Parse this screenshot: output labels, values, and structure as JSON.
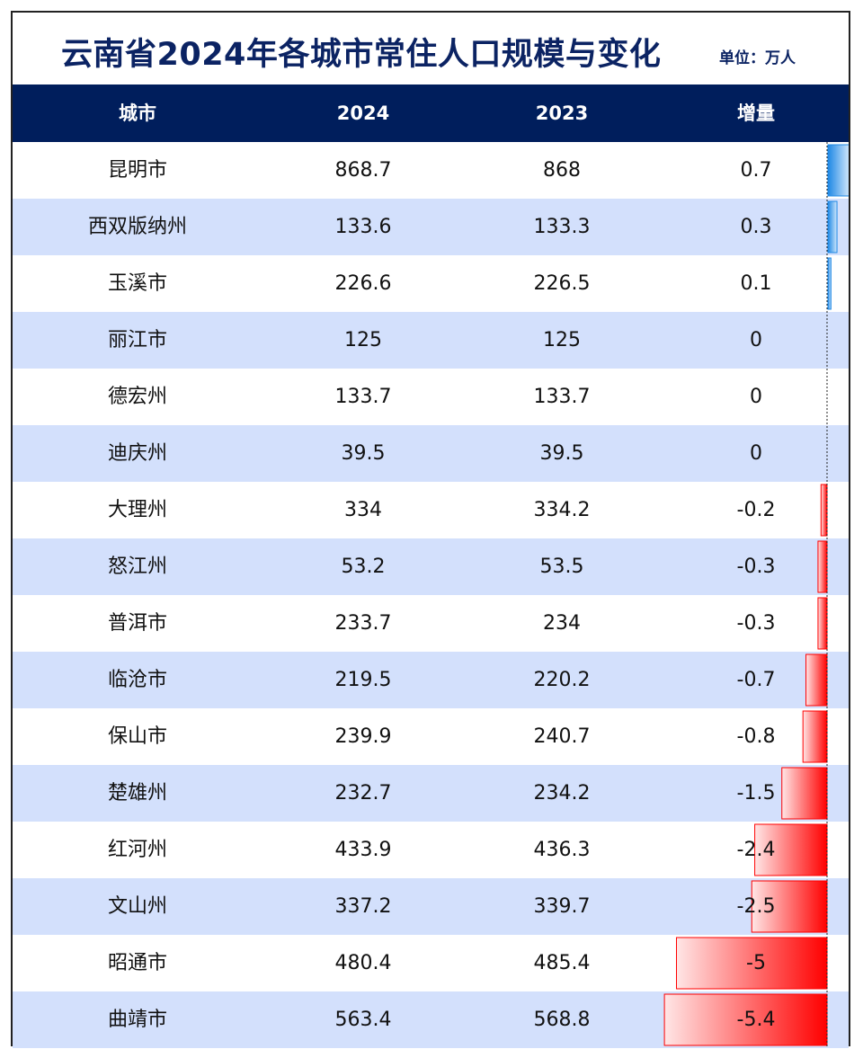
{
  "header": {
    "title": "云南省2024年各城市常住人口规模与变化",
    "unit": "单位：万人"
  },
  "table": {
    "columns": [
      "城市",
      "2024",
      "2023",
      "增量"
    ]
  },
  "chart_data": {
    "type": "table",
    "title": "云南省2024年各城市常住人口规模与变化",
    "unit": "单位：万人",
    "columns": [
      "城市",
      "2024",
      "2023",
      "增量"
    ],
    "rows": [
      {
        "city": "昆明市",
        "y2024": "868.7",
        "y2023": "868",
        "delta": "0.7"
      },
      {
        "city": "西双版纳州",
        "y2024": "133.6",
        "y2023": "133.3",
        "delta": "0.3"
      },
      {
        "city": "玉溪市",
        "y2024": "226.6",
        "y2023": "226.5",
        "delta": "0.1"
      },
      {
        "city": "丽江市",
        "y2024": "125",
        "y2023": "125",
        "delta": "0"
      },
      {
        "city": "德宏州",
        "y2024": "133.7",
        "y2023": "133.7",
        "delta": "0"
      },
      {
        "city": "迪庆州",
        "y2024": "39.5",
        "y2023": "39.5",
        "delta": "0"
      },
      {
        "city": "大理州",
        "y2024": "334",
        "y2023": "334.2",
        "delta": "-0.2"
      },
      {
        "city": "怒江州",
        "y2024": "53.2",
        "y2023": "53.5",
        "delta": "-0.3"
      },
      {
        "city": "普洱市",
        "y2024": "233.7",
        "y2023": "234",
        "delta": "-0.3"
      },
      {
        "city": "临沧市",
        "y2024": "219.5",
        "y2023": "220.2",
        "delta": "-0.7"
      },
      {
        "city": "保山市",
        "y2024": "239.9",
        "y2023": "240.7",
        "delta": "-0.8"
      },
      {
        "city": "楚雄州",
        "y2024": "232.7",
        "y2023": "234.2",
        "delta": "-1.5"
      },
      {
        "city": "红河州",
        "y2024": "433.9",
        "y2023": "436.3",
        "delta": "-2.4"
      },
      {
        "city": "文山州",
        "y2024": "337.2",
        "y2023": "339.7",
        "delta": "-2.5"
      },
      {
        "city": "昭通市",
        "y2024": "480.4",
        "y2023": "485.4",
        "delta": "-5"
      },
      {
        "city": "曲靖市",
        "y2024": "563.4",
        "y2023": "568.8",
        "delta": "-5.4"
      }
    ],
    "data_bars": {
      "column": "增量",
      "positive_color": "#1e88e5",
      "negative_color": "#ff0000"
    }
  },
  "colors": {
    "title": "#0b2363",
    "header_bg": "#001e5c",
    "row_alt": "#d3e0fc"
  }
}
